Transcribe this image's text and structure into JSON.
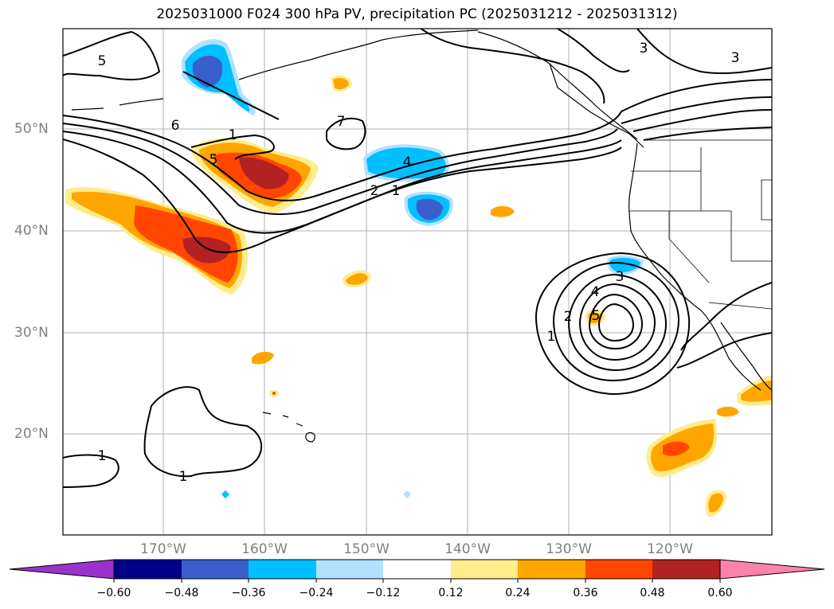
{
  "title": "2025031000 F024 300 hPa PV, precipitation PC (2025031212 - 2025031312)",
  "map": {
    "lat_labels": [
      "50°N",
      "40°N",
      "30°N",
      "20°N"
    ],
    "lon_labels": [
      "170°W",
      "160°W",
      "150°W",
      "140°W",
      "130°W",
      "120°W"
    ],
    "contour_labels": [
      "5",
      "6",
      "7",
      "5",
      "1",
      "4",
      "2",
      "1",
      "3",
      "3",
      "3",
      "4",
      "5",
      "2",
      "1",
      "1",
      "1"
    ]
  },
  "colorbar": {
    "tick_labels": [
      "−0.60",
      "−0.48",
      "−0.36",
      "−0.24",
      "−0.12",
      "0.12",
      "0.24",
      "0.36",
      "0.48",
      "0.60"
    ],
    "colors": [
      "#9933cc",
      "#00008b",
      "#3a5fcd",
      "#00bfff",
      "#b0e2ff",
      "#ffffff",
      "#ffec8b",
      "#ffa500",
      "#ff4500",
      "#b22222",
      "#ff82ab"
    ]
  }
}
